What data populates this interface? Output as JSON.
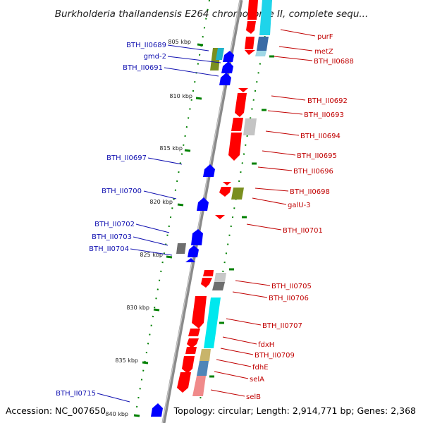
{
  "title": "Burkholderia thailandensis E264 chromosome II, complete sequ...",
  "footer": {
    "accession": "Accession: NC_007650",
    "topology": "Topology: circular; Length: 2,914,771 bp; Genes: 2,368"
  },
  "colors": {
    "forward": "#0000ff",
    "reverse": "#ff0000",
    "backbone": "#888888",
    "tick": "#008000",
    "left_label": "#1010b0",
    "right_label": "#c00000"
  },
  "kbp_ticks": [
    "805 kbp",
    "810 kbp",
    "815 kbp",
    "820 kbp",
    "825 kbp",
    "830 kbp",
    "835 kbp",
    "840 kbp"
  ],
  "left_labels": [
    "BTH_II0689",
    "gmd-2",
    "BTH_II0691",
    "BTH_II0697",
    "BTH_II0700",
    "BTH_II0702",
    "BTH_II0703",
    "BTH_II0704",
    "BTH_II0715"
  ],
  "right_labels": [
    "purF",
    "metZ",
    "BTH_II0688",
    "BTH_II0692",
    "BTH_II0693",
    "BTH_II0694",
    "BTH_II0695",
    "BTH_II0696",
    "BTH_II0698",
    "galU-3",
    "BTH_II0701",
    "BTH_II0705",
    "BTH_II0706",
    "BTH_II0707",
    "fdxH",
    "BTH_II0709",
    "fdhE",
    "selA",
    "selB"
  ]
}
